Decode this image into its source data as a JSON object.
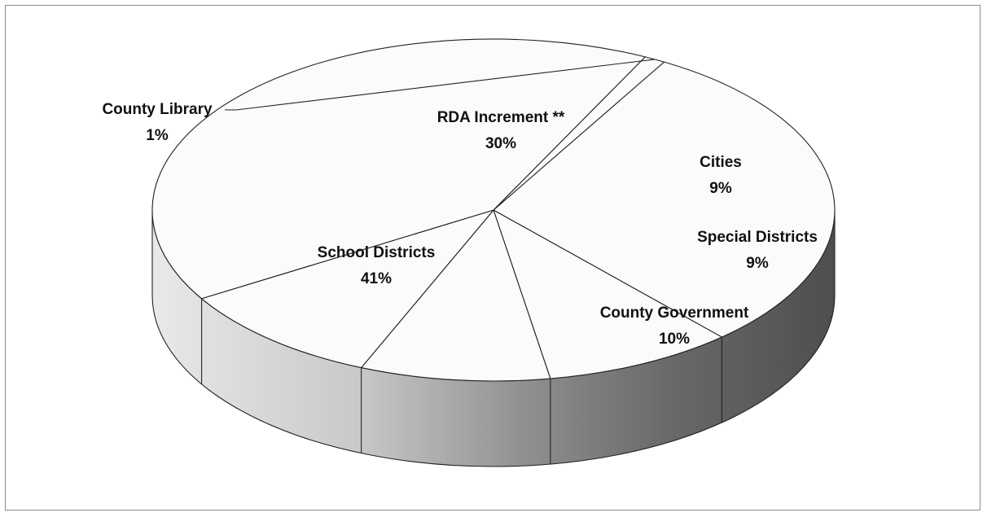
{
  "chart_data": {
    "type": "pie",
    "title": "",
    "three_d": true,
    "slices": [
      {
        "label": "RDA Increment **",
        "value": 30,
        "value_label": "30%"
      },
      {
        "label": "Cities",
        "value": 9,
        "value_label": "9%"
      },
      {
        "label": "Special Districts",
        "value": 9,
        "value_label": "9%"
      },
      {
        "label": "County Government",
        "value": 10,
        "value_label": "10%"
      },
      {
        "label": "School Districts",
        "value": 41,
        "value_label": "41%"
      },
      {
        "label": "County Library",
        "value": 1,
        "value_label": "1%"
      }
    ],
    "colors": {
      "top_face": "#fbfbfb",
      "side_light": "#e8e8e8",
      "side_dark": "#5e5e5e",
      "outline": "#222222",
      "frame_border": "#8c8c8c"
    }
  }
}
